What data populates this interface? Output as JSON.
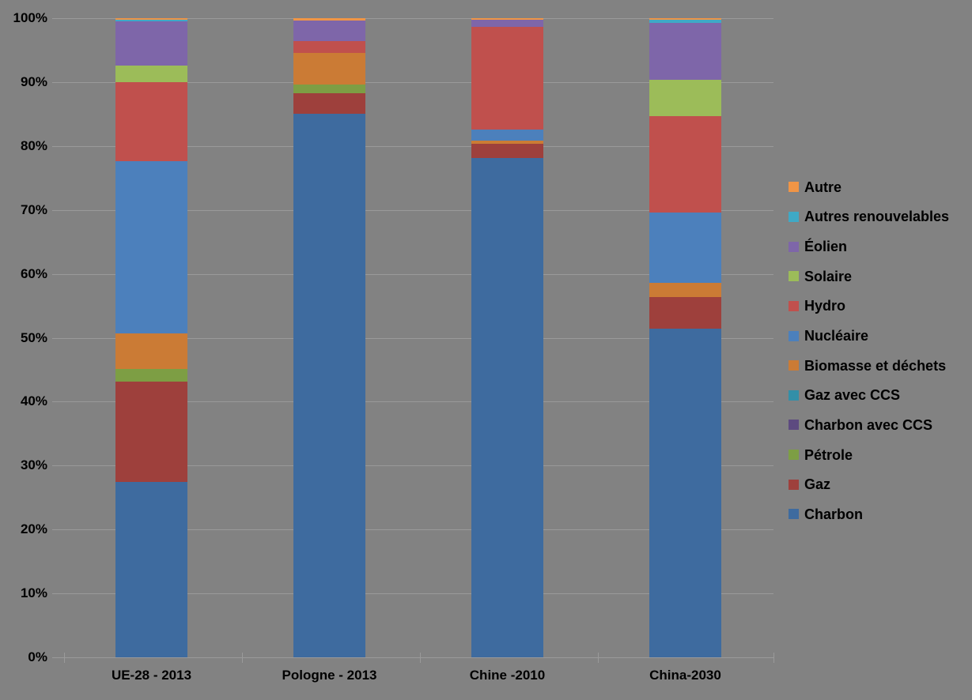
{
  "canvas": {
    "background_color": "#828282",
    "grid_color": "#9A9A9A",
    "text_color": "#000000"
  },
  "chart_data": {
    "type": "bar",
    "stacked": true,
    "unit": "percent_of_total",
    "title": "",
    "xlabel": "",
    "ylabel": "",
    "ylim": [
      0,
      100
    ],
    "grid": "horizontal",
    "legend_position": "right",
    "categories": [
      "UE-28 - 2013",
      "Pologne - 2013",
      "Chine -2010",
      "China-2030"
    ],
    "yticks": [
      0,
      10,
      20,
      30,
      40,
      50,
      60,
      70,
      80,
      90,
      100
    ],
    "ytick_labels": [
      "0%",
      "10%",
      "20%",
      "30%",
      "40%",
      "50%",
      "60%",
      "70%",
      "80%",
      "90%",
      "100%"
    ],
    "stack_order_bottom_to_top": [
      "Charbon",
      "Gaz",
      "Pétrole",
      "Charbon avec CCS",
      "Gaz avec CCS",
      "Biomasse et déchets",
      "Nucléaire",
      "Hydro",
      "Solaire",
      "Éolien",
      "Autres renouvelables",
      "Autre"
    ],
    "series": [
      {
        "name": "Charbon",
        "color": "#3E6B9F",
        "values": [
          27.5,
          85.0,
          78.1,
          51.4
        ]
      },
      {
        "name": "Gaz",
        "color": "#9E403C",
        "values": [
          15.6,
          3.2,
          2.2,
          5.0
        ]
      },
      {
        "name": "Pétrole",
        "color": "#7D9E44",
        "values": [
          2.0,
          1.4,
          0,
          0
        ]
      },
      {
        "name": "Charbon avec CCS",
        "color": "#5D4A80",
        "values": [
          0,
          0,
          0,
          0
        ]
      },
      {
        "name": "Gaz avec CCS",
        "color": "#338FA8",
        "values": [
          0,
          0,
          0,
          0
        ]
      },
      {
        "name": "Biomasse et déchets",
        "color": "#CB7B35",
        "values": [
          5.6,
          5.0,
          0.5,
          2.2
        ]
      },
      {
        "name": "Nucléaire",
        "color": "#4C80BC",
        "values": [
          26.9,
          0,
          1.8,
          11.0
        ]
      },
      {
        "name": "Hydro",
        "color": "#C0504D",
        "values": [
          12.4,
          1.8,
          16.1,
          15.1
        ]
      },
      {
        "name": "Solaire",
        "color": "#9CBC59",
        "values": [
          2.6,
          0,
          0,
          5.7
        ]
      },
      {
        "name": "Éolien",
        "color": "#7E66A9",
        "values": [
          6.9,
          3.3,
          1.0,
          8.9
        ]
      },
      {
        "name": "Autres renouvelables",
        "color": "#3FA9C6",
        "values": [
          0.25,
          0,
          0,
          0.4
        ]
      },
      {
        "name": "Autre",
        "color": "#F09546",
        "values": [
          0.25,
          0.3,
          0.3,
          0.3
        ]
      }
    ],
    "legend_order_top_to_bottom": [
      "Autre",
      "Autres renouvelables",
      "Éolien",
      "Solaire",
      "Hydro",
      "Nucléaire",
      "Biomasse et déchets",
      "Gaz avec CCS",
      "Charbon avec CCS",
      "Pétrole",
      "Gaz",
      "Charbon"
    ]
  }
}
